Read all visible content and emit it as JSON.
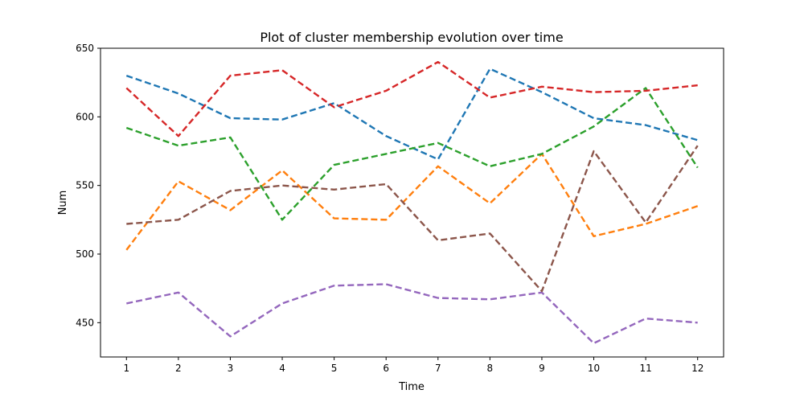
{
  "chart_data": {
    "type": "line",
    "title": "Plot of cluster membership evolution over time",
    "xlabel": "Time",
    "ylabel": "Num",
    "x": [
      1,
      2,
      3,
      4,
      5,
      6,
      7,
      8,
      9,
      10,
      11,
      12
    ],
    "xlim": [
      0.5,
      12.5
    ],
    "ylim": [
      425,
      650
    ],
    "yticks": [
      450,
      500,
      550,
      600,
      650
    ],
    "grid": false,
    "line_style": "dashed",
    "series": [
      {
        "color": "#1f77b4",
        "values": [
          630,
          617,
          599,
          598,
          610,
          586,
          569,
          635,
          618,
          599,
          594,
          583
        ]
      },
      {
        "color": "#ff7f0e",
        "values": [
          503,
          553,
          532,
          561,
          526,
          525,
          564,
          537,
          573,
          513,
          522,
          535
        ]
      },
      {
        "color": "#2ca02c",
        "values": [
          592,
          579,
          585,
          525,
          565,
          573,
          581,
          564,
          573,
          593,
          621,
          563
        ]
      },
      {
        "color": "#d62728",
        "values": [
          621,
          586,
          630,
          634,
          607,
          619,
          640,
          614,
          622,
          618,
          619,
          623
        ]
      },
      {
        "color": "#9467bd",
        "values": [
          464,
          472,
          440,
          464,
          477,
          478,
          468,
          467,
          472,
          435,
          453,
          450
        ]
      },
      {
        "color": "#8c564b",
        "values": [
          522,
          525,
          546,
          550,
          547,
          551,
          510,
          515,
          473,
          575,
          523,
          579
        ]
      }
    ]
  }
}
